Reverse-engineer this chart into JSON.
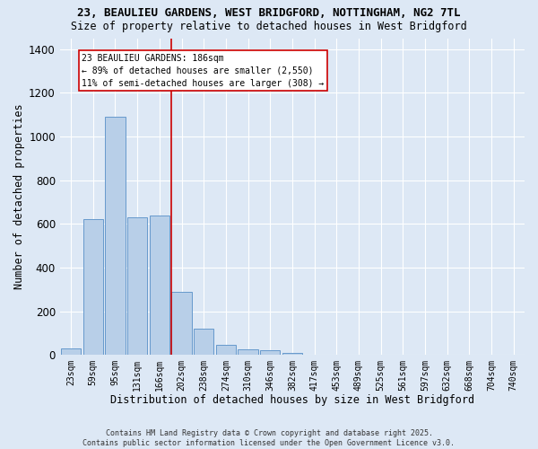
{
  "title_line1": "23, BEAULIEU GARDENS, WEST BRIDGFORD, NOTTINGHAM, NG2 7TL",
  "title_line2": "Size of property relative to detached houses in West Bridgford",
  "xlabel": "Distribution of detached houses by size in West Bridgford",
  "ylabel": "Number of detached properties",
  "bar_labels": [
    "23sqm",
    "59sqm",
    "95sqm",
    "131sqm",
    "166sqm",
    "202sqm",
    "238sqm",
    "274sqm",
    "310sqm",
    "346sqm",
    "382sqm",
    "417sqm",
    "453sqm",
    "489sqm",
    "525sqm",
    "561sqm",
    "597sqm",
    "632sqm",
    "668sqm",
    "704sqm",
    "740sqm"
  ],
  "bar_values": [
    30,
    620,
    1090,
    630,
    640,
    290,
    120,
    48,
    25,
    22,
    10,
    0,
    0,
    0,
    0,
    0,
    0,
    0,
    0,
    0,
    0
  ],
  "bar_color": "#b8cfe8",
  "bar_edge_color": "#6699cc",
  "vline_color": "#cc0000",
  "annotation_text": "23 BEAULIEU GARDENS: 186sqm\n← 89% of detached houses are smaller (2,550)\n11% of semi-detached houses are larger (308) →",
  "annotation_box_color": "#ffffff",
  "annotation_box_edge": "#cc0000",
  "background_color": "#dde8f5",
  "grid_color": "#ffffff",
  "ylim": [
    0,
    1450
  ],
  "yticks": [
    0,
    200,
    400,
    600,
    800,
    1000,
    1200,
    1400
  ],
  "footnote": "Contains HM Land Registry data © Crown copyright and database right 2025.\nContains public sector information licensed under the Open Government Licence v3.0."
}
